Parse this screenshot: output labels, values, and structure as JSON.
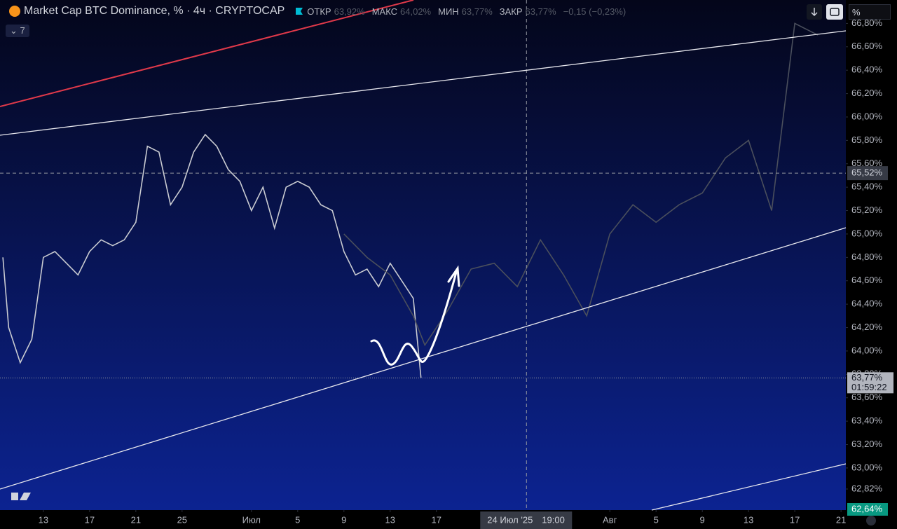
{
  "header": {
    "title": "Market Cap BTC Dominance, % · 4ч · CRYPTOCAP",
    "open_label": "ОТКР",
    "open": "63,92%",
    "high_label": "МАКС",
    "high": "64,02%",
    "low_label": "МИН",
    "low": "63,77%",
    "close_label": "ЗАКР",
    "close": "63,77%",
    "change": "−0,15 (−0,23%)",
    "indicators": "7",
    "scale_field": "%"
  },
  "chart_data": {
    "type": "line",
    "xlim": [
      "2025-06-09T06:00",
      "2025-08-21T10:00"
    ],
    "ylim": [
      62.64,
      67.0
    ],
    "yticks": [
      {
        "value": 66.8,
        "label": "66,80%"
      },
      {
        "value": 66.6,
        "label": "66,60%"
      },
      {
        "value": 66.4,
        "label": "66,40%"
      },
      {
        "value": 66.2,
        "label": "66,20%"
      },
      {
        "value": 66.0,
        "label": "66,00%"
      },
      {
        "value": 65.8,
        "label": "65,80%"
      },
      {
        "value": 65.6,
        "label": "65,60%"
      },
      {
        "value": 65.4,
        "label": "65,40%"
      },
      {
        "value": 65.2,
        "label": "65,20%"
      },
      {
        "value": 65.0,
        "label": "65,00%"
      },
      {
        "value": 64.8,
        "label": "64,80%"
      },
      {
        "value": 64.6,
        "label": "64,60%"
      },
      {
        "value": 64.4,
        "label": "64,40%"
      },
      {
        "value": 64.2,
        "label": "64,20%"
      },
      {
        "value": 64.0,
        "label": "64,00%"
      },
      {
        "value": 63.8,
        "label": "63,80%"
      },
      {
        "value": 63.6,
        "label": "63,60%"
      },
      {
        "value": 63.4,
        "label": "63,40%"
      },
      {
        "value": 63.2,
        "label": "63,20%"
      },
      {
        "value": 63.0,
        "label": "63,00%"
      },
      {
        "value": 62.82,
        "label": "62,82%"
      }
    ],
    "xticks": [
      {
        "value": "2025-06-13",
        "label": "13"
      },
      {
        "value": "2025-06-17",
        "label": "17"
      },
      {
        "value": "2025-06-21",
        "label": "21"
      },
      {
        "value": "2025-06-25",
        "label": "25"
      },
      {
        "value": "2025-07-01",
        "label": "Июл"
      },
      {
        "value": "2025-07-05",
        "label": "5"
      },
      {
        "value": "2025-07-09",
        "label": "9"
      },
      {
        "value": "2025-07-13",
        "label": "13"
      },
      {
        "value": "2025-07-17",
        "label": "17"
      },
      {
        "value": "2025-08-01",
        "label": "Авг"
      },
      {
        "value": "2025-08-05",
        "label": "5"
      },
      {
        "value": "2025-08-09",
        "label": "9"
      },
      {
        "value": "2025-08-13",
        "label": "13"
      },
      {
        "value": "2025-08-17",
        "label": "17"
      },
      {
        "value": "2025-08-21",
        "label": "21"
      }
    ],
    "series": [
      {
        "color": "#c9cbd1",
        "x": [
          "2025-06-09T12:00",
          "2025-06-10",
          "2025-06-11",
          "2025-06-12",
          "2025-06-13",
          "2025-06-14",
          "2025-06-15",
          "2025-06-16",
          "2025-06-17",
          "2025-06-18",
          "2025-06-19",
          "2025-06-20",
          "2025-06-21",
          "2025-06-22",
          "2025-06-23",
          "2025-06-24",
          "2025-06-25",
          "2025-06-26",
          "2025-06-27",
          "2025-06-28",
          "2025-06-29",
          "2025-06-30",
          "2025-07-01",
          "2025-07-02",
          "2025-07-03",
          "2025-07-04",
          "2025-07-05",
          "2025-07-06",
          "2025-07-07",
          "2025-07-08",
          "2025-07-09",
          "2025-07-10",
          "2025-07-11",
          "2025-07-12",
          "2025-07-13",
          "2025-07-14",
          "2025-07-15",
          "2025-07-15T16:00"
        ],
        "values": [
          64.8,
          64.2,
          63.9,
          64.1,
          64.8,
          64.85,
          64.75,
          64.65,
          64.85,
          64.95,
          64.9,
          64.95,
          65.1,
          65.75,
          65.7,
          65.25,
          65.4,
          65.7,
          65.85,
          65.75,
          65.55,
          65.45,
          65.2,
          65.4,
          65.05,
          65.4,
          65.45,
          65.4,
          65.25,
          65.2,
          64.85,
          64.65,
          64.7,
          64.55,
          64.75,
          64.6,
          64.45,
          63.77
        ]
      },
      {
        "color": "#4a4f5c",
        "x": [
          "2025-07-09",
          "2025-07-11",
          "2025-07-13",
          "2025-07-15",
          "2025-07-16",
          "2025-07-18",
          "2025-07-20",
          "2025-07-22",
          "2025-07-24",
          "2025-07-26",
          "2025-07-28",
          "2025-07-30",
          "2025-08-01",
          "2025-08-03",
          "2025-08-05",
          "2025-08-07",
          "2025-08-09",
          "2025-08-11",
          "2025-08-13",
          "2025-08-15",
          "2025-08-17",
          "2025-08-19"
        ],
        "values": [
          65.0,
          64.8,
          64.65,
          64.3,
          64.05,
          64.35,
          64.7,
          64.75,
          64.55,
          64.95,
          64.65,
          64.3,
          65.0,
          65.25,
          65.1,
          65.25,
          65.35,
          65.65,
          65.8,
          65.2,
          66.8,
          66.7
        ]
      }
    ],
    "crosshair": {
      "y": {
        "value": 65.52,
        "label": "65,52%"
      },
      "x": {
        "value": "2025-07-24T19:00",
        "date_label": "24 Июл '25",
        "time_label": "19:00"
      }
    },
    "last_price": {
      "value": 63.77,
      "label": "63,77%",
      "countdown": "01:59:22"
    },
    "line_price": {
      "value": 62.64,
      "label": "62,64%",
      "color": "#089981"
    }
  }
}
